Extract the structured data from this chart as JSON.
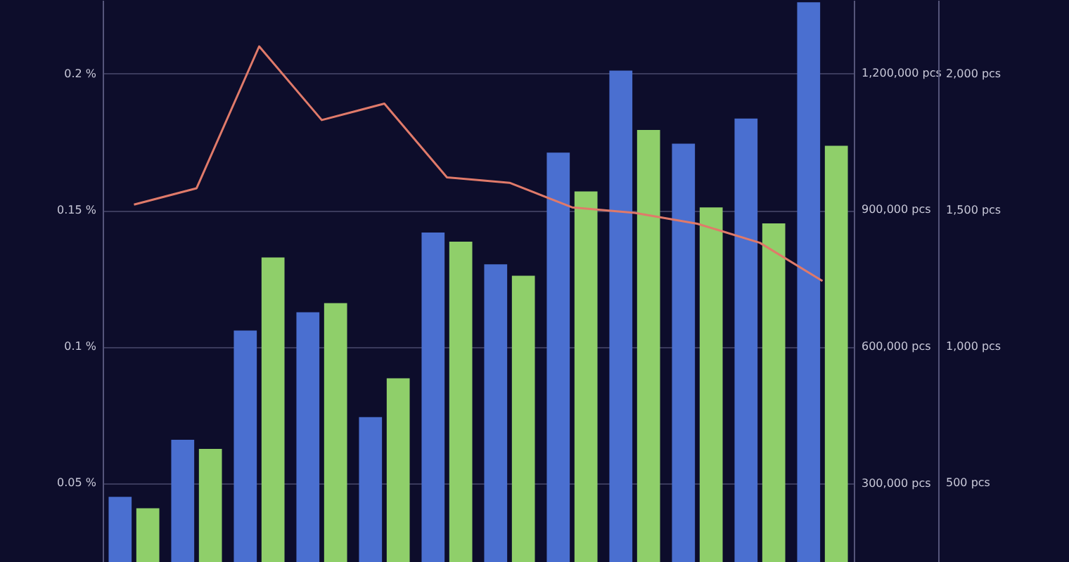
{
  "chart_data": {
    "type": "bar",
    "categories": [
      null,
      null,
      null,
      null,
      null,
      null,
      null,
      null,
      null,
      null,
      null,
      null
    ],
    "series": [
      {
        "axis": "y2",
        "color": "#4a6fd0",
        "values": [
          270000,
          395000,
          635000,
          675000,
          445000,
          850000,
          780000,
          1025000,
          1205000,
          1045000,
          1100000,
          1355000
        ]
      },
      {
        "axis": "y2",
        "color": "#8fcf6a",
        "values": [
          245000,
          375000,
          795000,
          695000,
          530000,
          830000,
          755000,
          940000,
          1075000,
          905000,
          870000,
          1040000
        ]
      },
      {
        "type": "line",
        "axis": "y",
        "color": "#e07a6a",
        "values": [
          0.152,
          0.158,
          0.21,
          0.183,
          0.189,
          0.162,
          0.16,
          0.151,
          0.149,
          0.145,
          0.138,
          0.124
        ]
      }
    ],
    "ylim": [
      0.021,
      0.227
    ],
    "yticks": [
      {
        "value": 0.05,
        "label": "0.05 %"
      },
      {
        "value": 0.1,
        "label": "0.1 %"
      },
      {
        "value": 0.15,
        "label": "0.15 %"
      },
      {
        "value": 0.2,
        "label": "0.2 %"
      }
    ],
    "y2lim": [
      127000,
      1360000
    ],
    "y2ticks": [
      {
        "value": 300000,
        "label": "300,000 pcs"
      },
      {
        "value": 600000,
        "label": "600,000 pcs"
      },
      {
        "value": 900000,
        "label": "900,000 pcs"
      },
      {
        "value": 1200000,
        "label": "1,200,000 pcs"
      }
    ],
    "y3lim": [
      210,
      2270
    ],
    "y3ticks": [
      {
        "value": 500,
        "label": "500 pcs"
      },
      {
        "value": 1000,
        "label": "1,000 pcs"
      },
      {
        "value": 1500,
        "label": "1,500 pcs"
      },
      {
        "value": 2000,
        "label": "2,000 pcs"
      }
    ],
    "grid": "y",
    "legend": false,
    "marker": "none"
  }
}
